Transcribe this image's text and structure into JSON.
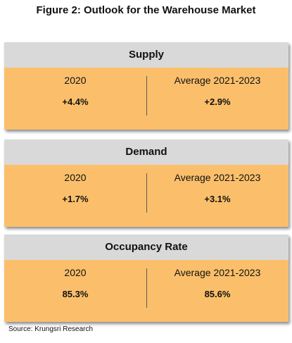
{
  "title": "Figure 2: Outlook for the Warehouse Market",
  "colors": {
    "header_bg": "#d9d9d9",
    "body_bg": "#fbbf6b",
    "divider": "#5a5a5a"
  },
  "panels": [
    {
      "heading": "Supply",
      "left_label": "2020",
      "left_value": "+4.4%",
      "right_label": "Average 2021-2023",
      "right_value": "+2.9%"
    },
    {
      "heading": "Demand",
      "left_label": "2020",
      "left_value": "+1.7%",
      "right_label": "Average 2021-2023",
      "right_value": "+3.1%"
    },
    {
      "heading": "Occupancy Rate",
      "left_label": "2020",
      "left_value": "85.3%",
      "right_label": "Average 2021-2023",
      "right_value": "85.6%"
    }
  ],
  "source": "Source: Krungsri Research"
}
